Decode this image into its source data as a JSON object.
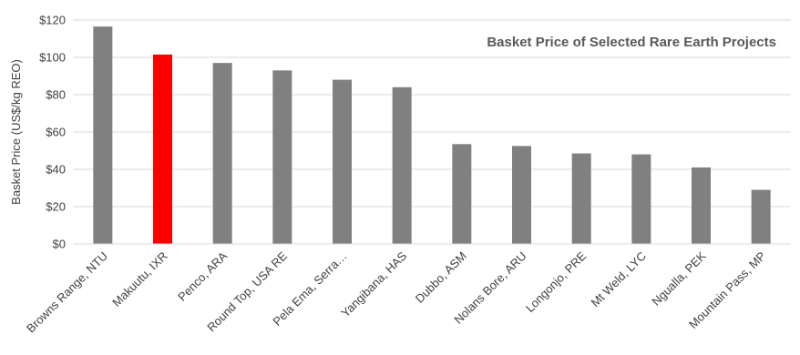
{
  "chart_data": {
    "type": "bar",
    "title": "Basket Price of Selected Rare Earth Projects",
    "xlabel": "",
    "ylabel": "Basket Price (US$/kg REO)",
    "ylim": [
      0,
      120
    ],
    "yticks": [
      0,
      20,
      40,
      60,
      80,
      100,
      120
    ],
    "ytick_labels": [
      "$0",
      "$20",
      "$40",
      "$60",
      "$80",
      "$100",
      "$120"
    ],
    "categories": [
      "Browns Range, NTU",
      "Makuutu, IXR",
      "Penco, ARA",
      "Round Top, USA RE",
      "Pela Ema, Serra…",
      "Yangibana, HAS",
      "Dubbo, ASM",
      "Nolans Bore, ARU",
      "Longonjo, PRE",
      "Mt Weld, LYC",
      "Ngualla, PEK",
      "Mountain Pass, MP"
    ],
    "values": [
      116.5,
      101.5,
      97,
      93,
      88,
      84,
      53.5,
      52.5,
      48.5,
      48,
      41,
      29
    ],
    "colors": [
      "#808080",
      "#ff0000",
      "#808080",
      "#808080",
      "#808080",
      "#808080",
      "#808080",
      "#808080",
      "#808080",
      "#808080",
      "#808080",
      "#808080"
    ],
    "grid": true,
    "legend": "none"
  }
}
